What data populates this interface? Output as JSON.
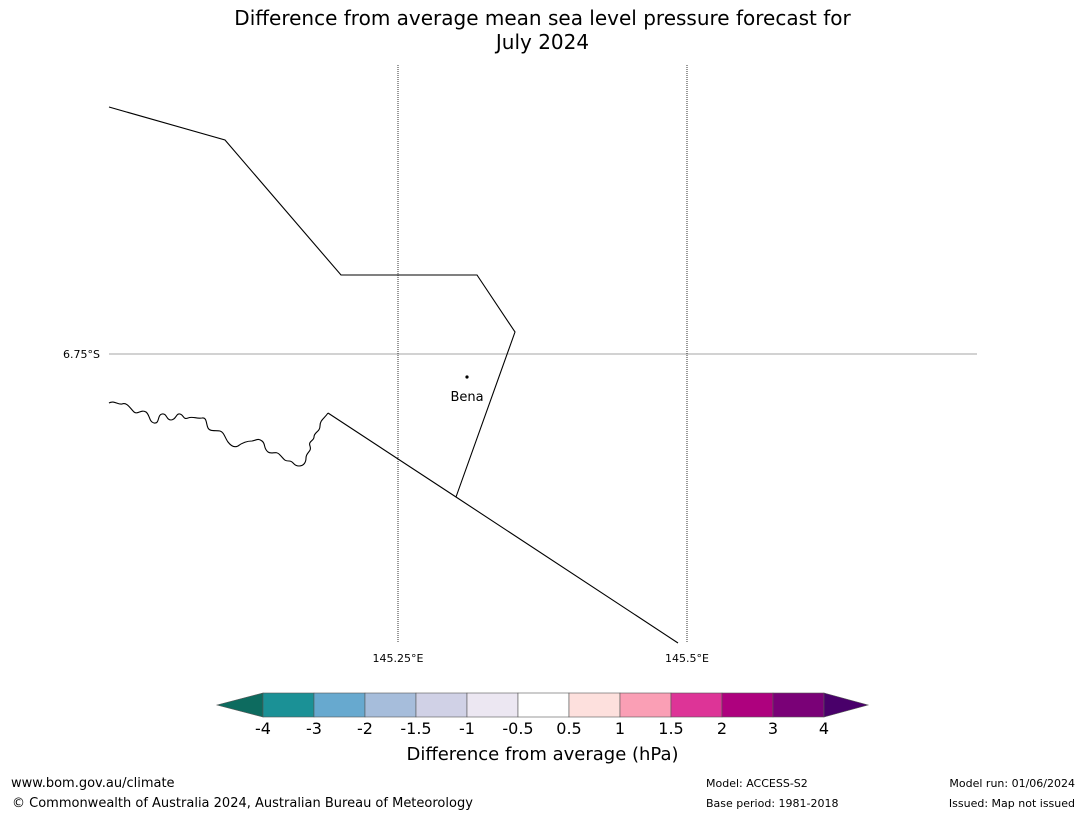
{
  "title": {
    "line1": "Difference from average mean sea level pressure forecast for",
    "line2": "July 2024"
  },
  "map": {
    "graticule": {
      "lat_labels": [
        "6.75°S"
      ],
      "lon_labels": [
        "145.25°E",
        "145.5°E"
      ]
    },
    "places": [
      {
        "name": "Bena"
      }
    ]
  },
  "colorbar": {
    "title": "Difference from average (hPa)",
    "ticks": [
      "-4",
      "-3",
      "-2",
      "-1.5",
      "-1",
      "-0.5",
      "0.5",
      "1",
      "1.5",
      "2",
      "3",
      "4"
    ],
    "colors": [
      "#0d6b5f",
      "#1b9196",
      "#67a9cf",
      "#a6bddb",
      "#d0d1e6",
      "#ece7f2",
      "#ffffff",
      "#fde0dd",
      "#fa9fb5",
      "#dd3497",
      "#ae017e",
      "#7a0177",
      "#49006a"
    ]
  },
  "footer": {
    "website": "www.bom.gov.au/climate",
    "copyright": "© Commonwealth of Australia 2024, Australian Bureau of Meteorology",
    "model": "Model: ACCESS-S2",
    "base_period": "Base period: 1981-2018",
    "model_run": "Model run: 01/06/2024",
    "issued": "Issued: Map not issued"
  }
}
